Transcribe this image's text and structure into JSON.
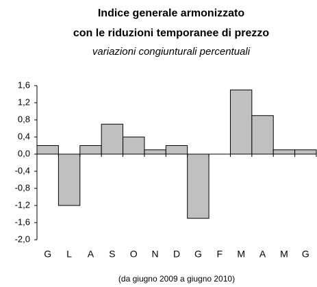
{
  "chart_data": {
    "type": "bar",
    "title": "Indice generale armonizzato",
    "subtitle": "con le riduzioni temporanee di prezzo",
    "caption": "variazioni congiunturali percentuali",
    "note": "(da giugno 2009 a giugno 2010)",
    "categories": [
      "G",
      "L",
      "A",
      "S",
      "O",
      "N",
      "D",
      "G",
      "F",
      "M",
      "A",
      "M",
      "G"
    ],
    "values": [
      0.2,
      -1.2,
      0.2,
      0.7,
      0.4,
      0.1,
      0.2,
      -1.5,
      0,
      1.5,
      0.9,
      0.1,
      0.1
    ],
    "color": "#c0c0c0",
    "ylim": [
      -2.0,
      1.6
    ],
    "yticks": [
      {
        "value": 1.6,
        "label": "1,6"
      },
      {
        "value": 1.2,
        "label": "1,2"
      },
      {
        "value": 0.8,
        "label": "0,8"
      },
      {
        "value": 0.4,
        "label": "0,4"
      },
      {
        "value": 0.0,
        "label": "0,0"
      },
      {
        "value": -0.4,
        "label": "-0,4"
      },
      {
        "value": -0.8,
        "label": "-0,8"
      },
      {
        "value": -1.2,
        "label": "-1,2"
      },
      {
        "value": -1.6,
        "label": "-1,6"
      },
      {
        "value": -2.0,
        "label": "-2,0"
      }
    ],
    "grid": false
  }
}
